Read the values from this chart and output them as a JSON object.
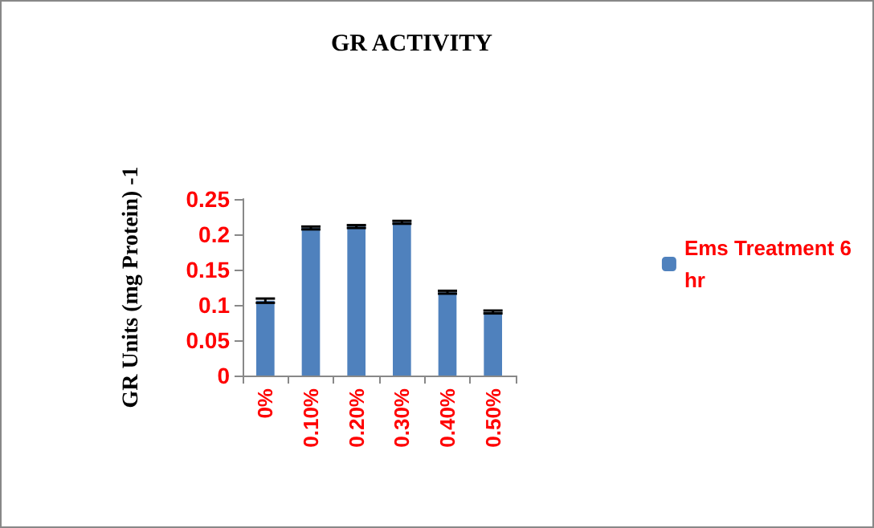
{
  "chart_data": {
    "type": "bar",
    "title": "GR ACTIVITY",
    "ylabel": "GR Units (mg Protein) -1",
    "categories": [
      "0%",
      "0.10%",
      "0.20%",
      "0.30%",
      "0.40%",
      "0.50%"
    ],
    "series": [
      {
        "name": "Ems Treatment 6 hr",
        "color": "#4f81bd",
        "values": [
          0.106,
          0.209,
          0.211,
          0.217,
          0.118,
          0.09
        ],
        "errors": [
          0.003,
          0.002,
          0.002,
          0.002,
          0.002,
          0.002
        ]
      }
    ],
    "ylim": [
      0,
      0.25
    ],
    "yticks": [
      0,
      0.05,
      0.1,
      0.15,
      0.2,
      0.25
    ],
    "grid": false,
    "legend": "right"
  }
}
